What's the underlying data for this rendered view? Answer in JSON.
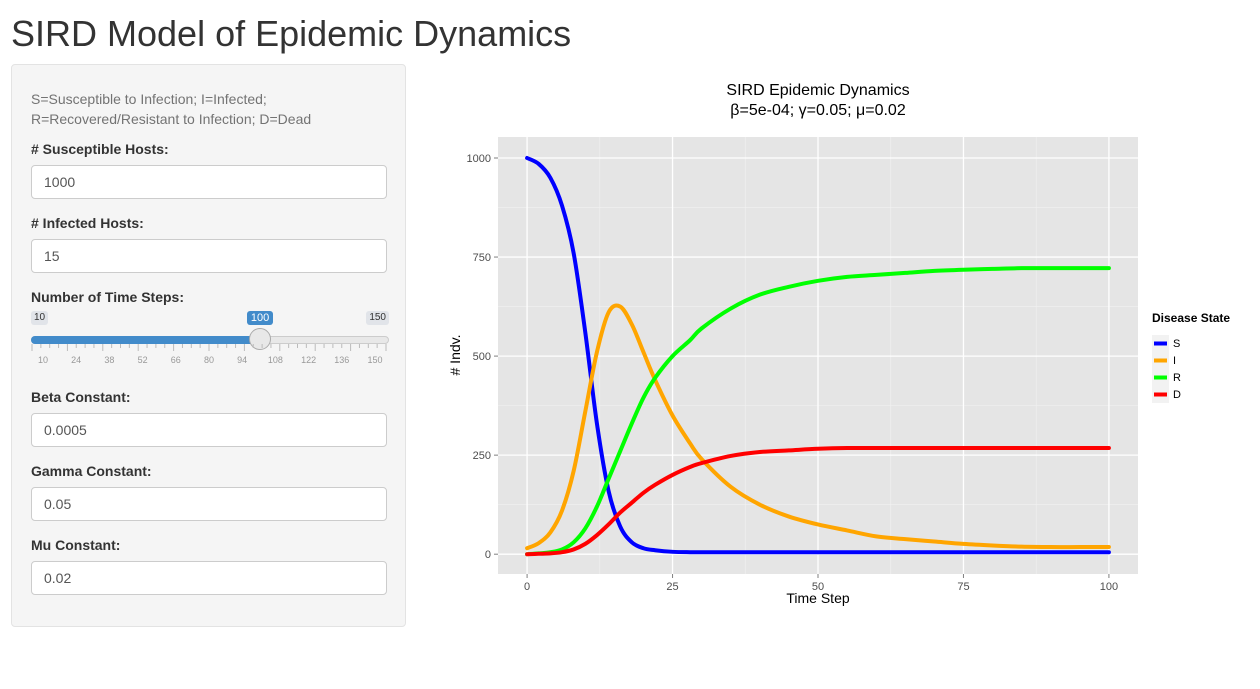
{
  "page": {
    "title": "SIRD Model of Epidemic Dynamics"
  },
  "sidebar": {
    "help_line1": "S=Susceptible to Infection; I=Infected;",
    "help_line2": "R=Recovered/Resistant to Infection; D=Dead",
    "susceptible": {
      "label": "# Susceptible Hosts:",
      "value": "1000"
    },
    "infected": {
      "label": "# Infected Hosts:",
      "value": "15"
    },
    "time_steps": {
      "label": "Number of Time Steps:",
      "min": "10",
      "max": "150",
      "value": "100",
      "fraction": 0.6429,
      "ticks": [
        "10",
        "24",
        "38",
        "52",
        "66",
        "80",
        "94",
        "108",
        "122",
        "136",
        "150"
      ]
    },
    "beta": {
      "label": "Beta Constant:",
      "value": "0.0005"
    },
    "gamma": {
      "label": "Gamma Constant:",
      "value": "0.05"
    },
    "mu": {
      "label": "Mu Constant:",
      "value": "0.02"
    }
  },
  "colors": {
    "accent": "#428bca",
    "panel_bg": "#e5e5e5",
    "S": "#0000ff",
    "I": "#ffa500",
    "R": "#00ff00",
    "D": "#ff0000"
  },
  "chart_data": {
    "type": "line",
    "title": "SIRD Epidemic Dynamics",
    "subtitle": "β=5e-04; γ=0.05; μ=0.02",
    "xlabel": "Time Step",
    "ylabel": "# Indv.",
    "xlim": [
      0,
      100
    ],
    "ylim": [
      0,
      1000
    ],
    "xticks": [
      0,
      25,
      50,
      75,
      100
    ],
    "yticks": [
      0,
      250,
      500,
      750,
      1000
    ],
    "grid": true,
    "legend": {
      "title": "Disease State",
      "placement": "right"
    },
    "x": [
      0,
      2,
      4,
      6,
      8,
      10,
      12,
      14,
      16,
      18,
      20,
      22,
      25,
      28,
      30,
      35,
      40,
      45,
      50,
      55,
      60,
      65,
      70,
      75,
      80,
      85,
      90,
      95,
      100
    ],
    "series": [
      {
        "name": "S",
        "color": "#0000ff",
        "values": [
          1000,
          985,
          950,
          880,
          760,
          560,
          330,
          160,
          70,
          30,
          15,
          10,
          6,
          5,
          5,
          5,
          5,
          5,
          5,
          5,
          5,
          5,
          5,
          5,
          5,
          5,
          5,
          5,
          5
        ]
      },
      {
        "name": "I",
        "color": "#ffa500",
        "values": [
          15,
          28,
          55,
          110,
          210,
          360,
          510,
          610,
          625,
          580,
          510,
          440,
          350,
          280,
          240,
          170,
          125,
          95,
          75,
          60,
          45,
          38,
          32,
          26,
          22,
          19,
          18,
          18,
          18
        ]
      },
      {
        "name": "R",
        "color": "#00ff00",
        "values": [
          0,
          2,
          5,
          12,
          30,
          65,
          120,
          190,
          260,
          330,
          395,
          445,
          500,
          540,
          570,
          620,
          655,
          675,
          690,
          700,
          705,
          710,
          715,
          718,
          720,
          722,
          722,
          722,
          722
        ]
      },
      {
        "name": "D",
        "color": "#ff0000",
        "values": [
          0,
          1,
          2,
          5,
          12,
          26,
          48,
          75,
          105,
          130,
          155,
          175,
          200,
          220,
          230,
          248,
          258,
          262,
          266,
          268,
          268,
          268,
          268,
          268,
          268,
          268,
          268,
          268,
          268
        ]
      }
    ]
  }
}
